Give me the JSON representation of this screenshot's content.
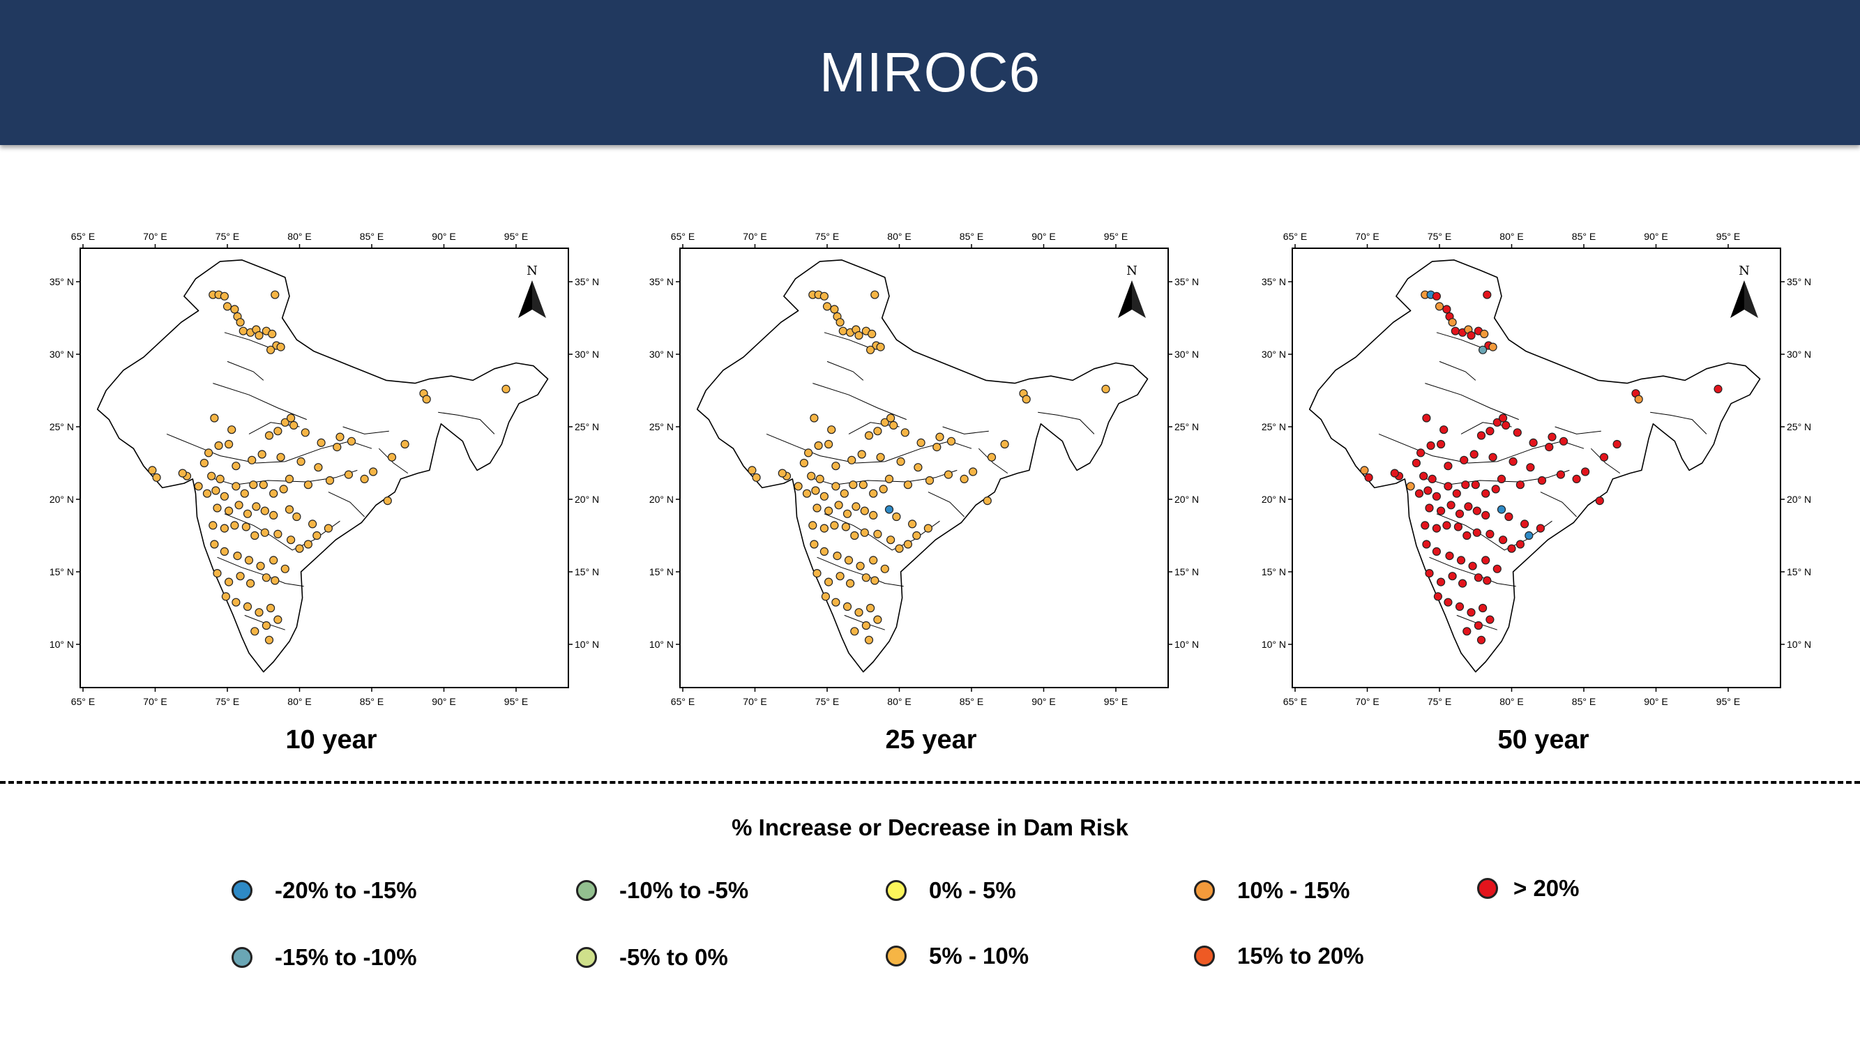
{
  "title": "MIROC6",
  "panels": [
    {
      "label": "10 year",
      "category": "pos5_10"
    },
    {
      "label": "25 year",
      "category": "pos5_10"
    },
    {
      "label": "50 year",
      "category": "gt20"
    }
  ],
  "axes": {
    "lon_ticks": [
      "65° E",
      "70° E",
      "75° E",
      "80° E",
      "85° E",
      "90° E",
      "95° E"
    ],
    "lat_ticks": [
      "35° N",
      "30° N",
      "25° N",
      "20° N",
      "15° N",
      "10° N"
    ],
    "north_label": "N"
  },
  "legend": {
    "title": "% Increase or Decrease in Dam Risk",
    "items": [
      {
        "label": "-20% to -15%",
        "color": "#2e8ac6"
      },
      {
        "label": "-10% to -5%",
        "color": "#93c08f"
      },
      {
        "label": "0% - 5%",
        "color": "#fbf55b"
      },
      {
        "label": "10% - 15%",
        "color": "#f39a3b"
      },
      {
        "label": "> 20%",
        "color": "#e3141c"
      },
      {
        "label": "-15% to -10%",
        "color": "#6aa6b5"
      },
      {
        "label": "-5% to 0%",
        "color": "#cfe08b"
      },
      {
        "label": "5% - 10%",
        "color": "#f6b545"
      },
      {
        "label": "15% to 20%",
        "color": "#ee5a24"
      }
    ]
  }
}
